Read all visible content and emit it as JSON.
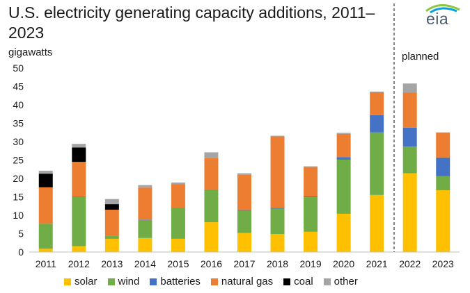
{
  "title": "U.S. electricity generating capacity additions, 2011–2023",
  "logo_text": "eia",
  "chart_data": {
    "type": "bar",
    "stacked": true,
    "title": "U.S. electricity generating capacity additions, 2011–2023",
    "ylabel": "gigawatts",
    "annotation": "planned",
    "ylim": [
      0,
      50
    ],
    "yticks": [
      "0",
      "5",
      "10",
      "15",
      "20",
      "25",
      "30",
      "35",
      "40",
      "45",
      "50"
    ],
    "categories": [
      "2011",
      "2012",
      "2013",
      "2014",
      "2015",
      "2016",
      "2017",
      "2018",
      "2019",
      "2020",
      "2021",
      "2022",
      "2023"
    ],
    "planned_from": "2022",
    "legend_position": "bottom",
    "series": [
      {
        "name": "solar",
        "color": "#ffc000",
        "values": [
          0.9,
          1.6,
          3.6,
          3.8,
          3.6,
          8.1,
          5.2,
          4.9,
          5.5,
          10.4,
          15.5,
          21.4,
          16.8
        ]
      },
      {
        "name": "wind",
        "color": "#70ad47",
        "values": [
          6.8,
          13.4,
          0.9,
          4.9,
          8.3,
          8.8,
          6.0,
          6.9,
          9.4,
          14.7,
          17.0,
          7.3,
          3.8
        ]
      },
      {
        "name": "batteries",
        "color": "#4472c4",
        "values": [
          0.0,
          0.1,
          0.0,
          0.1,
          0.1,
          0.1,
          0.2,
          0.2,
          0.2,
          0.7,
          4.7,
          5.1,
          5.1
        ]
      },
      {
        "name": "natural gas",
        "color": "#ed7d31",
        "values": [
          9.9,
          9.4,
          7.0,
          8.7,
          6.4,
          8.5,
          9.6,
          19.4,
          8.0,
          6.3,
          6.2,
          9.5,
          6.8
        ]
      },
      {
        "name": "coal",
        "color": "#000000",
        "values": [
          3.7,
          3.9,
          1.5,
          0.0,
          0.0,
          0.0,
          0.0,
          0.0,
          0.0,
          0.0,
          0.0,
          0.0,
          0.0
        ]
      },
      {
        "name": "other",
        "color": "#a5a5a5",
        "values": [
          0.8,
          1.0,
          1.4,
          0.7,
          0.5,
          1.6,
          0.4,
          0.2,
          0.2,
          0.3,
          0.2,
          2.5,
          0.0
        ]
      }
    ]
  }
}
